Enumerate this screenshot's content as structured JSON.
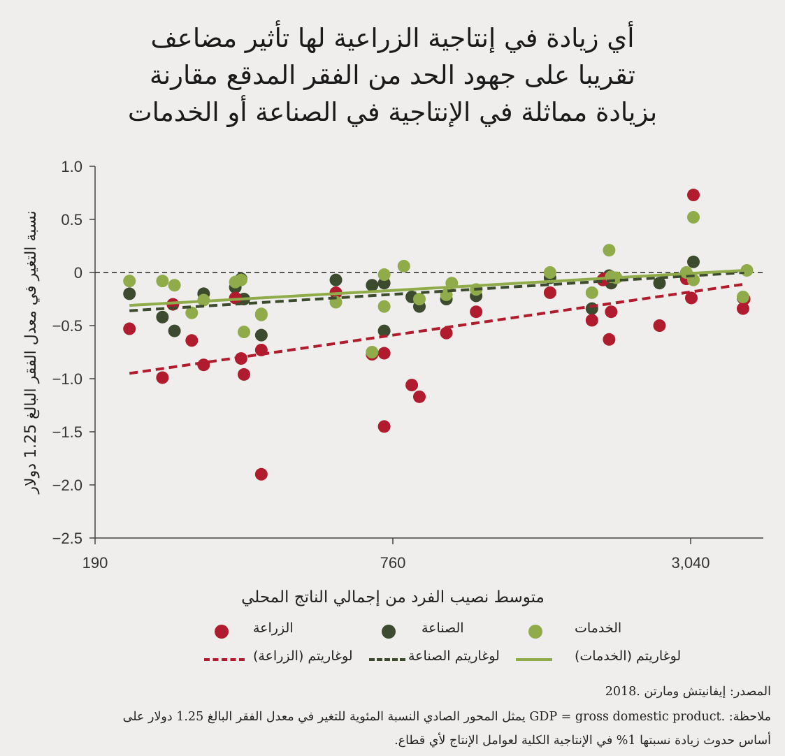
{
  "title_lines": [
    "أي زيادة في إنتاجية الزراعية لها تأثير مضاعف",
    "تقريبا على جهود الحد من الفقر المدقع مقارنة",
    "بزيادة مماثلة في الإنتاجية في الصناعة أو الخدمات"
  ],
  "colors": {
    "agriculture": "#b01c2e",
    "industry": "#3c4a2e",
    "services": "#8fab4a",
    "axis": "#444444",
    "background": "#efeeed"
  },
  "legend": {
    "agriculture": "الزراعة",
    "industry": "الصناعة",
    "services": "الخدمات",
    "log_agriculture": "لوغاريتم (الزراعة)",
    "log_industry": "لوغاريتم الصناعة",
    "log_services": "لوغاريتم (الخدمات)"
  },
  "notes": {
    "source": "المصدر: إيفانيتش ومارتن  .2018",
    "note_line1": "ملاحظة: .GDP = gross domestic product يمثل المحور الصادي النسبة المئوية للتغير في معدل الفقر البالغ 1.25 دولار على",
    "note_line2": "أساس حدوث زيادة نسبتها 1% في الإنتاجية الكلية لعوامل الإنتاج لأي قطاع."
  },
  "chart_data": {
    "type": "scatter",
    "x_scale": "log",
    "xlabel": "متوسط نصيب الفرد من إجمالي الناتج المحلي",
    "ylabel": "نسبة التغير في معدل الفقر البالغ 1.25 دولار",
    "xlim": [
      190,
      4000
    ],
    "ylim": [
      -2.5,
      1.0
    ],
    "x_ticks": [
      190,
      760,
      3040
    ],
    "x_tick_labels": [
      "190",
      "760",
      "3,040"
    ],
    "y_ticks": [
      1.0,
      0.5,
      0,
      -0.5,
      -1.0,
      -1.5,
      -2.0,
      -2.5
    ],
    "y_tick_labels": [
      "1.0",
      "0.5",
      "0",
      "−0.5",
      "−1.0",
      "−1.5",
      "−2.0",
      "−2.5"
    ],
    "zero_line": "dashed",
    "series": [
      {
        "name": "الزراعة",
        "color": "#b01c2e",
        "points": [
          [
            223,
            -0.53
          ],
          [
            260,
            -0.99
          ],
          [
            273,
            -0.3
          ],
          [
            298,
            -0.64
          ],
          [
            315,
            -0.87
          ],
          [
            365,
            -0.24
          ],
          [
            375,
            -0.81
          ],
          [
            380,
            -0.96
          ],
          [
            412,
            -1.9
          ],
          [
            412,
            -0.73
          ],
          [
            583,
            -0.19
          ],
          [
            690,
            -0.77
          ],
          [
            730,
            -0.76
          ],
          [
            730,
            -1.45
          ],
          [
            830,
            -1.06
          ],
          [
            860,
            -1.17
          ],
          [
            975,
            -0.57
          ],
          [
            1120,
            -0.37
          ],
          [
            1580,
            -0.19
          ],
          [
            1920,
            -0.45
          ],
          [
            2080,
            -0.63
          ],
          [
            2100,
            -0.37
          ],
          [
            2020,
            -0.07
          ],
          [
            2030,
            -0.06
          ],
          [
            2630,
            -0.5
          ],
          [
            2980,
            -0.06
          ],
          [
            3050,
            -0.24
          ],
          [
            3080,
            0.73
          ],
          [
            3880,
            -0.34
          ],
          [
            3900,
            -0.25
          ]
        ]
      },
      {
        "name": "الصناعة",
        "color": "#3c4a2e",
        "points": [
          [
            223,
            -0.2
          ],
          [
            260,
            -0.42
          ],
          [
            275,
            -0.55
          ],
          [
            315,
            -0.2
          ],
          [
            365,
            -0.14
          ],
          [
            375,
            -0.06
          ],
          [
            380,
            -0.25
          ],
          [
            412,
            -0.59
          ],
          [
            583,
            -0.07
          ],
          [
            690,
            -0.12
          ],
          [
            730,
            -0.1
          ],
          [
            730,
            -0.55
          ],
          [
            830,
            -0.23
          ],
          [
            860,
            -0.32
          ],
          [
            975,
            -0.25
          ],
          [
            1120,
            -0.22
          ],
          [
            1580,
            -0.05
          ],
          [
            1920,
            -0.34
          ],
          [
            2080,
            -0.03
          ],
          [
            2100,
            -0.1
          ],
          [
            2630,
            -0.1
          ],
          [
            2980,
            -0.02
          ],
          [
            3080,
            0.1
          ],
          [
            3880,
            -0.24
          ]
        ]
      },
      {
        "name": "الخدمات",
        "color": "#8fab4a",
        "points": [
          [
            223,
            -0.08
          ],
          [
            260,
            -0.08
          ],
          [
            275,
            -0.12
          ],
          [
            298,
            -0.38
          ],
          [
            315,
            -0.26
          ],
          [
            365,
            -0.09
          ],
          [
            375,
            -0.07
          ],
          [
            380,
            -0.56
          ],
          [
            412,
            -0.39
          ],
          [
            412,
            -0.4
          ],
          [
            583,
            -0.28
          ],
          [
            690,
            -0.75
          ],
          [
            730,
            -0.02
          ],
          [
            730,
            -0.32
          ],
          [
            800,
            0.06
          ],
          [
            860,
            -0.25
          ],
          [
            975,
            -0.21
          ],
          [
            1000,
            -0.1
          ],
          [
            1120,
            -0.16
          ],
          [
            1580,
            0.0
          ],
          [
            1920,
            -0.19
          ],
          [
            2080,
            0.21
          ],
          [
            2100,
            -0.04
          ],
          [
            2150,
            -0.05
          ],
          [
            2980,
            0.0
          ],
          [
            3080,
            -0.07
          ],
          [
            3080,
            0.52
          ],
          [
            3880,
            -0.23
          ],
          [
            3950,
            0.02
          ]
        ]
      }
    ],
    "trend_lines": [
      {
        "name": "لوغاريتم (الزراعة)",
        "style": "dashed",
        "color": "#b01c2e",
        "from": [
          223,
          -0.95
        ],
        "to": [
          3900,
          -0.11
        ]
      },
      {
        "name": "لوغاريتم الصناعة",
        "style": "dashed",
        "color": "#3c4a2e",
        "from": [
          223,
          -0.36
        ],
        "to": [
          3900,
          0.0
        ]
      },
      {
        "name": "لوغاريتم (الخدمات)",
        "style": "solid",
        "color": "#8fab4a",
        "from": [
          223,
          -0.31
        ],
        "to": [
          3900,
          0.02
        ]
      }
    ]
  }
}
